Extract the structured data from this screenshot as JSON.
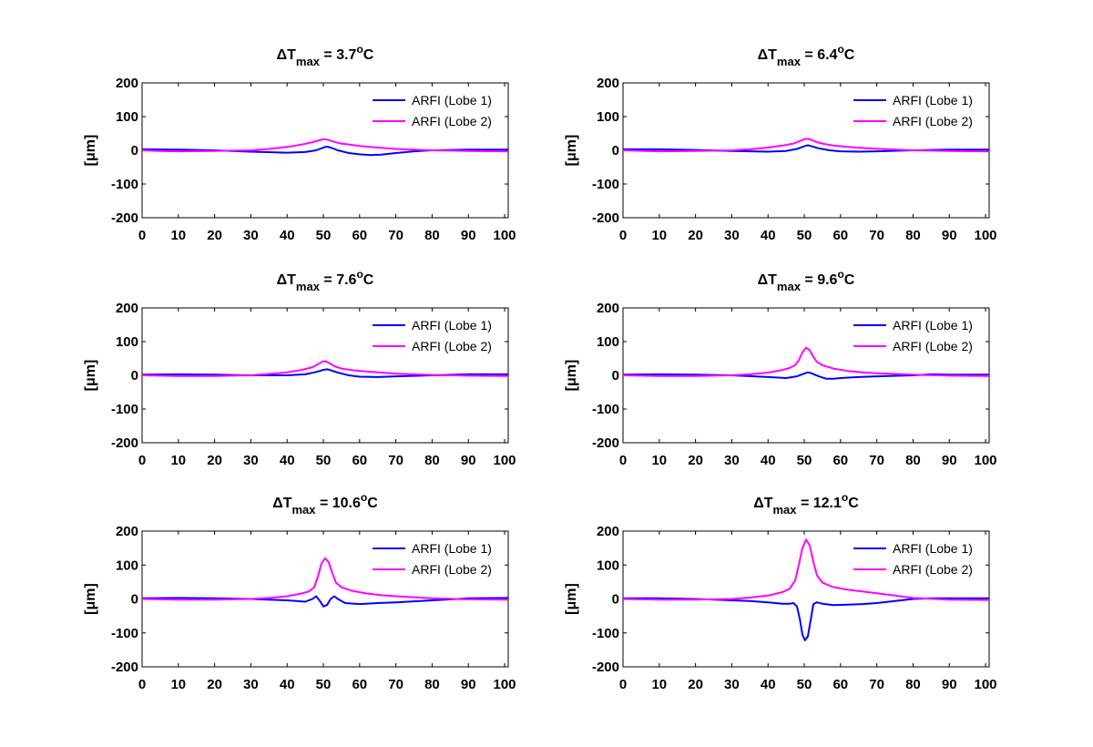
{
  "figure": {
    "background": "#ffffff"
  },
  "colors": {
    "lobe1": "#0000ff",
    "lobe2": "#ff00ff",
    "axis": "#000000"
  },
  "chart_data": [
    {
      "type": "line",
      "title": {
        "prefix": "ΔT",
        "sub": "max",
        "value": " = 3.7",
        "deg": "o",
        "unit": "C"
      },
      "ylabel": "[μm]",
      "xlim": [
        0,
        101
      ],
      "ylim": [
        -200,
        200
      ],
      "xticks": [
        0,
        10,
        20,
        30,
        40,
        50,
        60,
        70,
        80,
        90,
        100
      ],
      "yticks": [
        -200,
        -100,
        0,
        100,
        200
      ],
      "legend": {
        "position": "top-right",
        "entries": [
          "ARFI (Lobe 1)",
          "ARFI (Lobe 2)"
        ]
      },
      "series": [
        {
          "name": "ARFI (Lobe 1)",
          "x": [
            0,
            10,
            20,
            30,
            40,
            45,
            48,
            50,
            51,
            52,
            54,
            57,
            60,
            63,
            66,
            70,
            75,
            80,
            90,
            101
          ],
          "values": [
            3,
            2,
            0,
            -4,
            -7,
            -5,
            0,
            8,
            11,
            8,
            0,
            -8,
            -12,
            -14,
            -13,
            -8,
            -3,
            0,
            2,
            2
          ]
        },
        {
          "name": "ARFI (Lobe 2)",
          "x": [
            0,
            5,
            10,
            20,
            30,
            35,
            40,
            44,
            47,
            49,
            50,
            51,
            52,
            53,
            55,
            60,
            65,
            70,
            80,
            90,
            101
          ],
          "values": [
            0,
            -2,
            -3,
            -2,
            0,
            4,
            10,
            17,
            24,
            30,
            33,
            32,
            29,
            25,
            20,
            13,
            8,
            4,
            0,
            -2,
            -3
          ]
        }
      ]
    },
    {
      "type": "line",
      "title": {
        "prefix": "ΔT",
        "sub": "max",
        "value": " = 6.4",
        "deg": "o",
        "unit": "C"
      },
      "ylabel": "[μm]",
      "xlim": [
        0,
        101
      ],
      "ylim": [
        -200,
        200
      ],
      "xticks": [
        0,
        10,
        20,
        30,
        40,
        50,
        60,
        70,
        80,
        90,
        100
      ],
      "yticks": [
        -200,
        -100,
        0,
        100,
        200
      ],
      "legend": {
        "position": "top-right",
        "entries": [
          "ARFI (Lobe 1)",
          "ARFI (Lobe 2)"
        ]
      },
      "series": [
        {
          "name": "ARFI (Lobe 1)",
          "x": [
            0,
            10,
            20,
            30,
            40,
            45,
            48,
            50,
            51,
            52,
            54,
            57,
            60,
            65,
            70,
            80,
            90,
            101
          ],
          "values": [
            3,
            3,
            1,
            -2,
            -4,
            -2,
            4,
            12,
            15,
            12,
            6,
            0,
            -3,
            -4,
            -3,
            0,
            2,
            2
          ]
        },
        {
          "name": "ARFI (Lobe 2)",
          "x": [
            0,
            10,
            20,
            30,
            35,
            40,
            44,
            47,
            49,
            50,
            51,
            52,
            53,
            55,
            58,
            62,
            66,
            70,
            80,
            90,
            101
          ],
          "values": [
            0,
            -3,
            -2,
            0,
            3,
            8,
            14,
            20,
            28,
            33,
            34,
            31,
            26,
            20,
            14,
            10,
            7,
            5,
            0,
            -2,
            -3
          ]
        }
      ]
    },
    {
      "type": "line",
      "title": {
        "prefix": "ΔT",
        "sub": "max",
        "value": " = 7.6",
        "deg": "o",
        "unit": "C"
      },
      "ylabel": "[μm]",
      "xlim": [
        0,
        101
      ],
      "ylim": [
        -200,
        200
      ],
      "xticks": [
        0,
        10,
        20,
        30,
        40,
        50,
        60,
        70,
        80,
        90,
        100
      ],
      "yticks": [
        -200,
        -100,
        0,
        100,
        200
      ],
      "legend": {
        "position": "top-right",
        "entries": [
          "ARFI (Lobe 1)",
          "ARFI (Lobe 2)"
        ]
      },
      "series": [
        {
          "name": "ARFI (Lobe 1)",
          "x": [
            0,
            10,
            20,
            30,
            40,
            45,
            48,
            50,
            51,
            52,
            54,
            57,
            60,
            65,
            70,
            80,
            90,
            101
          ],
          "values": [
            2,
            3,
            2,
            0,
            0,
            3,
            10,
            16,
            18,
            15,
            8,
            0,
            -4,
            -5,
            -3,
            0,
            3,
            3
          ]
        },
        {
          "name": "ARFI (Lobe 2)",
          "x": [
            0,
            10,
            20,
            30,
            35,
            40,
            44,
            47,
            49,
            50,
            51,
            52,
            53,
            55,
            58,
            62,
            66,
            70,
            80,
            90,
            101
          ],
          "values": [
            0,
            -2,
            -2,
            0,
            4,
            9,
            16,
            24,
            36,
            42,
            40,
            34,
            27,
            20,
            15,
            11,
            8,
            5,
            1,
            -1,
            -2
          ]
        }
      ]
    },
    {
      "type": "line",
      "title": {
        "prefix": "ΔT",
        "sub": "max",
        "value": " = 9.6",
        "deg": "o",
        "unit": "C"
      },
      "ylabel": "[μm]",
      "xlim": [
        0,
        101
      ],
      "ylim": [
        -200,
        200
      ],
      "xticks": [
        0,
        10,
        20,
        30,
        40,
        50,
        60,
        70,
        80,
        90,
        100
      ],
      "yticks": [
        -200,
        -100,
        0,
        100,
        200
      ],
      "legend": {
        "position": "top-right",
        "entries": [
          "ARFI (Lobe 1)",
          "ARFI (Lobe 2)"
        ]
      },
      "series": [
        {
          "name": "ARFI (Lobe 1)",
          "x": [
            0,
            10,
            20,
            30,
            40,
            45,
            48,
            50,
            51,
            52,
            54,
            56,
            58,
            60,
            65,
            70,
            80,
            85,
            90,
            101
          ],
          "values": [
            2,
            3,
            2,
            0,
            -5,
            -8,
            -3,
            5,
            9,
            6,
            -3,
            -10,
            -10,
            -8,
            -5,
            -3,
            0,
            3,
            2,
            2
          ]
        },
        {
          "name": "ARFI (Lobe 2)",
          "x": [
            0,
            10,
            20,
            30,
            35,
            40,
            44,
            46,
            47.5,
            48.5,
            49.5,
            50.5,
            51.5,
            52.5,
            53.5,
            55,
            58,
            62,
            66,
            70,
            80,
            90,
            101
          ],
          "values": [
            0,
            -2,
            -2,
            0,
            3,
            8,
            16,
            22,
            30,
            45,
            68,
            82,
            75,
            55,
            40,
            30,
            20,
            13,
            9,
            6,
            2,
            -1,
            -2
          ]
        }
      ]
    },
    {
      "type": "line",
      "title": {
        "prefix": "ΔT",
        "sub": "max",
        "value": " = 10.6",
        "deg": "o",
        "unit": "C"
      },
      "ylabel": "[μm]",
      "xlim": [
        0,
        101
      ],
      "ylim": [
        -200,
        200
      ],
      "xticks": [
        0,
        10,
        20,
        30,
        40,
        50,
        60,
        70,
        80,
        90,
        100
      ],
      "yticks": [
        -200,
        -100,
        0,
        100,
        200
      ],
      "legend": {
        "position": "top-right",
        "entries": [
          "ARFI (Lobe 1)",
          "ARFI (Lobe 2)"
        ]
      },
      "series": [
        {
          "name": "ARFI (Lobe 1)",
          "x": [
            0,
            10,
            20,
            30,
            40,
            45,
            47,
            48,
            49,
            50,
            51,
            52,
            53,
            54,
            56,
            60,
            65,
            70,
            80,
            90,
            101
          ],
          "values": [
            2,
            3,
            2,
            0,
            -4,
            -8,
            0,
            8,
            -5,
            -22,
            -18,
            0,
            8,
            0,
            -12,
            -15,
            -12,
            -10,
            -4,
            2,
            3
          ]
        },
        {
          "name": "ARFI (Lobe 2)",
          "x": [
            0,
            10,
            20,
            30,
            35,
            40,
            44,
            46,
            47.5,
            48.5,
            49.5,
            50.5,
            51.5,
            52.5,
            53.5,
            55,
            58,
            62,
            66,
            70,
            80,
            90,
            101
          ],
          "values": [
            0,
            -2,
            -2,
            0,
            3,
            8,
            16,
            22,
            35,
            65,
            105,
            120,
            108,
            75,
            48,
            34,
            24,
            16,
            11,
            8,
            2,
            -1,
            -2
          ]
        }
      ]
    },
    {
      "type": "line",
      "title": {
        "prefix": "ΔT",
        "sub": "max",
        "value": " = 12.1",
        "deg": "o",
        "unit": "C"
      },
      "ylabel": "[μm]",
      "xlim": [
        0,
        101
      ],
      "ylim": [
        -200,
        200
      ],
      "xticks": [
        0,
        10,
        20,
        30,
        40,
        50,
        60,
        70,
        80,
        90,
        100
      ],
      "yticks": [
        -200,
        -100,
        0,
        100,
        200
      ],
      "legend": {
        "position": "top-right",
        "entries": [
          "ARFI (Lobe 1)",
          "ARFI (Lobe 2)"
        ]
      },
      "series": [
        {
          "name": "ARFI (Lobe 1)",
          "x": [
            0,
            10,
            20,
            25,
            30,
            35,
            40,
            44,
            46,
            47,
            48,
            48.8,
            49.5,
            50.2,
            51,
            51.8,
            52.5,
            53.5,
            55,
            58,
            62,
            66,
            70,
            75,
            80,
            85,
            90,
            101
          ],
          "values": [
            2,
            2,
            0,
            -2,
            -4,
            -6,
            -10,
            -14,
            -14,
            -12,
            -22,
            -60,
            -105,
            -122,
            -110,
            -60,
            -15,
            -10,
            -14,
            -18,
            -17,
            -15,
            -12,
            -6,
            0,
            2,
            2,
            2
          ]
        },
        {
          "name": "ARFI (Lobe 2)",
          "x": [
            0,
            10,
            20,
            30,
            35,
            40,
            44,
            46,
            47.5,
            48.5,
            49.5,
            50.5,
            51.5,
            52.5,
            53.5,
            55,
            58,
            62,
            66,
            70,
            75,
            80,
            90,
            101
          ],
          "values": [
            0,
            -2,
            -2,
            0,
            4,
            10,
            20,
            30,
            55,
            100,
            150,
            175,
            158,
            110,
            70,
            48,
            35,
            27,
            22,
            17,
            10,
            3,
            -2,
            -3
          ]
        }
      ]
    }
  ]
}
